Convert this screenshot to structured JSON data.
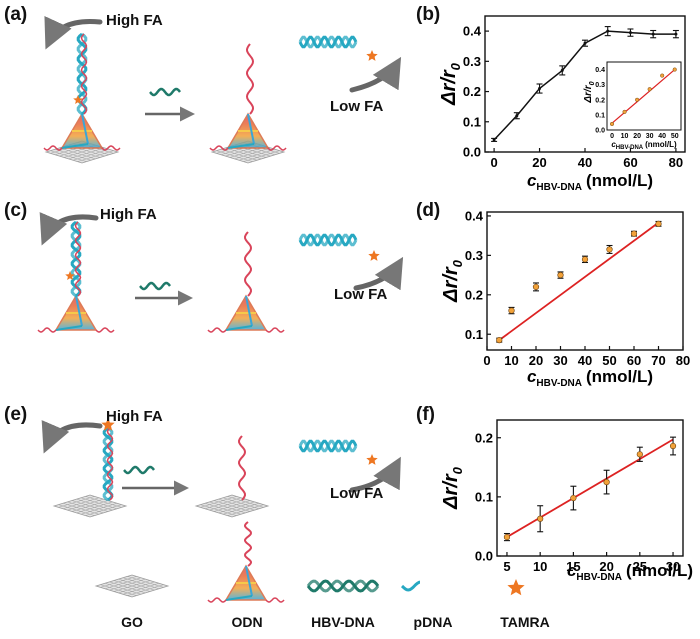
{
  "panels": {
    "a": {
      "label": "(a)",
      "high": "High FA",
      "low": "Low FA"
    },
    "b": {
      "label": "(b)"
    },
    "c": {
      "label": "(c)",
      "high": "High FA",
      "low": "Low FA"
    },
    "d": {
      "label": "(d)"
    },
    "e": {
      "label": "(e)",
      "high": "High FA",
      "low": "Low FA"
    },
    "f": {
      "label": "(f)"
    }
  },
  "legend": [
    {
      "id": "go",
      "label": "GO"
    },
    {
      "id": "odn",
      "label": "ODN"
    },
    {
      "id": "hbv",
      "label": "HBV-DNA"
    },
    {
      "id": "pdna",
      "label": "pDNA"
    },
    {
      "id": "tamra",
      "label": "TAMRA"
    }
  ],
  "colors": {
    "hbv": "#1f7a6a",
    "pdna": "#27a8c2",
    "odn_strand": "#d9445a",
    "tamra": "#ee7722",
    "fit": "#dd2222",
    "point": "#f2a23a",
    "arrow": "#666666",
    "go": "#b8b8b8"
  },
  "chart_data": [
    {
      "id": "b",
      "type": "line",
      "ylabel": "Δr/r0",
      "xlabel": "cHBV-DNA (nmol/L)",
      "xlabel_symbol": "c",
      "xlabel_sub": "HBV-DNA",
      "xlabel_unit": "(nmol/L)",
      "ylabel_main": "Δr/r",
      "ylabel_sub": "0",
      "xlim": [
        -4,
        84
      ],
      "ylim": [
        0,
        0.45
      ],
      "xticks": [
        0,
        20,
        40,
        60,
        80
      ],
      "yticks": [
        0.0,
        0.1,
        0.2,
        0.3,
        0.4
      ],
      "x": [
        0,
        10,
        20,
        30,
        40,
        50,
        60,
        70,
        80
      ],
      "y": [
        0.04,
        0.12,
        0.21,
        0.27,
        0.36,
        0.4,
        0.395,
        0.39,
        0.39
      ],
      "err": [
        0.005,
        0.01,
        0.015,
        0.015,
        0.01,
        0.015,
        0.012,
        0.012,
        0.012
      ],
      "inset": {
        "type": "scatter_fit",
        "xlabel_symbol": "c",
        "xlabel_sub": "HBV-DNA",
        "xlabel_unit": "(nmol/L)",
        "ylabel_main": "Δr/r",
        "ylabel_sub": "0",
        "xlim": [
          -4,
          55
        ],
        "ylim": [
          0,
          0.45
        ],
        "xticks": [
          0,
          10,
          20,
          30,
          40,
          50
        ],
        "yticks": [
          0.0,
          0.1,
          0.2,
          0.3,
          0.4
        ],
        "x": [
          0,
          10,
          20,
          30,
          40,
          50
        ],
        "y": [
          0.04,
          0.12,
          0.2,
          0.27,
          0.36,
          0.4
        ],
        "fit": [
          [
            0,
            0.045
          ],
          [
            50,
            0.4
          ]
        ]
      }
    },
    {
      "id": "d",
      "type": "scatter_fit",
      "ylabel_main": "Δr/r",
      "ylabel_sub": "0",
      "xlabel_symbol": "c",
      "xlabel_sub": "HBV-DNA",
      "xlabel_unit": "(nmol/L)",
      "xlim": [
        0,
        80
      ],
      "ylim": [
        0.06,
        0.41
      ],
      "xticks": [
        0,
        10,
        20,
        30,
        40,
        50,
        60,
        70,
        80
      ],
      "yticks": [
        0.1,
        0.2,
        0.3,
        0.4
      ],
      "x": [
        5,
        10,
        20,
        30,
        40,
        50,
        60,
        70
      ],
      "y": [
        0.085,
        0.16,
        0.22,
        0.25,
        0.29,
        0.315,
        0.355,
        0.38
      ],
      "err": [
        0.005,
        0.008,
        0.01,
        0.008,
        0.008,
        0.01,
        0.006,
        0.006
      ],
      "fit": [
        [
          5,
          0.085
        ],
        [
          70,
          0.383
        ]
      ]
    },
    {
      "id": "f",
      "type": "scatter_fit",
      "ylabel_main": "Δr/r",
      "ylabel_sub": "0",
      "xlabel_symbol": "c",
      "xlabel_sub": "HBV-DNA",
      "xlabel_unit": "(nmol/L)",
      "xlim": [
        3.5,
        31.5
      ],
      "ylim": [
        0,
        0.23
      ],
      "xticks": [
        5,
        10,
        15,
        20,
        25,
        30
      ],
      "yticks": [
        0.0,
        0.1,
        0.2
      ],
      "x": [
        5,
        10,
        15,
        20,
        25,
        30
      ],
      "y": [
        0.032,
        0.063,
        0.098,
        0.125,
        0.172,
        0.186
      ],
      "err": [
        0.006,
        0.022,
        0.02,
        0.02,
        0.012,
        0.015
      ],
      "fit": [
        [
          5,
          0.032
        ],
        [
          30,
          0.197
        ]
      ]
    }
  ]
}
